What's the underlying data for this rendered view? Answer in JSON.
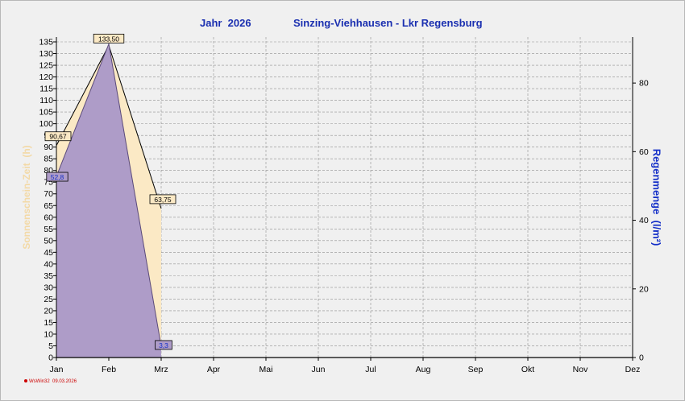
{
  "header": {
    "year_label": "Jahr  2026",
    "station": "Sinzing-Viehhausen - Lkr Regensburg"
  },
  "axes": {
    "left_title": "Sonnenschein-Zeit  (h)",
    "right_title": "Regenmenge  (l/m²)"
  },
  "footer": {
    "stamp": "WsWin32  09.03.2026"
  },
  "colors": {
    "sun_fill": "#fbe9c5",
    "rain_fill": "#ae9cc8",
    "rain_label": "#1530c8",
    "title": "#1a2fb0",
    "grid": "#909090"
  },
  "chart_data": {
    "type": "area",
    "categories": [
      "Jan",
      "Feb",
      "Mrz",
      "Apr",
      "Mai",
      "Jun",
      "Jul",
      "Aug",
      "Sep",
      "Okt",
      "Nov",
      "Dez"
    ],
    "left_axis": {
      "min": 0,
      "max": 135,
      "step": 5
    },
    "right_axis": {
      "min": 0,
      "max": 92,
      "ticks": [
        0,
        20,
        40,
        60,
        80
      ]
    },
    "series": [
      {
        "axis": "left",
        "x": [
          "Jan",
          "Feb",
          "Mrz"
        ],
        "values": [
          90.67,
          133.5,
          63.75
        ],
        "labels": [
          "90,67",
          "133,50",
          "63,75"
        ]
      },
      {
        "axis": "right",
        "x": [
          "Jan",
          "Feb",
          "Mrz"
        ],
        "values": [
          52.8,
          91.4,
          3.3
        ],
        "labels": [
          "52,8",
          "",
          "3,3"
        ]
      }
    ]
  }
}
